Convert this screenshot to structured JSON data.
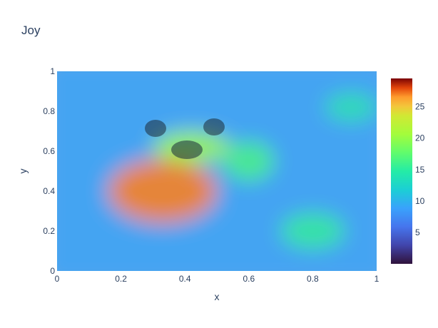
{
  "chart_data": {
    "type": "heatmap",
    "title": "Joy",
    "xlabel": "x",
    "ylabel": "y",
    "xlim": [
      0,
      1
    ],
    "ylim": [
      0,
      1
    ],
    "x_ticks": [
      "0",
      "0.2",
      "0.4",
      "0.6",
      "0.8",
      "1"
    ],
    "y_ticks": [
      "0",
      "0.2",
      "0.4",
      "0.6",
      "0.8",
      "1"
    ],
    "colorbar": {
      "min": 0,
      "max": 29.5,
      "ticks": [
        "5",
        "10",
        "15",
        "20",
        "25"
      ],
      "colorscale": "turbo"
    },
    "background_image": "harp-seal-pup photo overlaid by heatmap",
    "hotspots": [
      {
        "x": 0.33,
        "y": 0.4,
        "value": 27,
        "rx": 0.17,
        "ry": 0.16
      },
      {
        "x": 0.42,
        "y": 0.62,
        "value": 20,
        "rx": 0.12,
        "ry": 0.08
      },
      {
        "x": 0.6,
        "y": 0.55,
        "value": 16,
        "rx": 0.08,
        "ry": 0.1
      },
      {
        "x": 0.8,
        "y": 0.2,
        "value": 15,
        "rx": 0.1,
        "ry": 0.09
      },
      {
        "x": 0.92,
        "y": 0.82,
        "value": 14,
        "rx": 0.08,
        "ry": 0.07
      }
    ],
    "base_value": 9
  }
}
